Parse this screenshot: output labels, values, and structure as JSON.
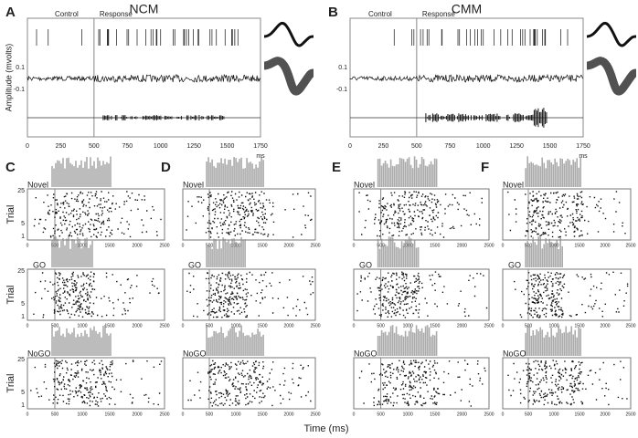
{
  "top_panels": [
    {
      "letter": "A",
      "title": "NCM",
      "control": "Control",
      "response": "Response",
      "ylabel": "Amplitude (mvolts)",
      "yticks": [
        "0.1",
        "-0.1"
      ],
      "xticks": [
        "0",
        "250",
        "500",
        "750",
        "1000",
        "1250",
        "1500",
        "1750"
      ],
      "xunit": "ms"
    },
    {
      "letter": "B",
      "title": "CMM",
      "control": "Control",
      "response": "Response",
      "yticks": [
        "0.1",
        "-0.1"
      ],
      "xticks": [
        "0",
        "250",
        "500",
        "750",
        "1000",
        "1250",
        "1500",
        "1750"
      ],
      "xunit": "ms"
    }
  ],
  "raster_columns": [
    {
      "letter": "C",
      "ylabel": "Trial",
      "yticks": [
        "25",
        "5",
        "1"
      ],
      "rows": [
        "Novel",
        "GO",
        "NoGO"
      ],
      "xticks": [
        "0",
        "500",
        "1000",
        "1500",
        "2000",
        "2500"
      ]
    },
    {
      "letter": "D",
      "rows": [
        "Novel",
        "GO",
        "NoGO"
      ],
      "xticks": [
        "0",
        "500",
        "1000",
        "1500",
        "2000",
        "2500"
      ]
    },
    {
      "letter": "E",
      "rows": [
        "Novel",
        "GO",
        "NoGO"
      ],
      "xticks": [
        "0",
        "500",
        "1000",
        "1500",
        "2000",
        "2500"
      ]
    },
    {
      "letter": "F",
      "rows": [
        "Novel",
        "GO",
        "NoGO"
      ],
      "xticks": [
        "0",
        "500",
        "1000",
        "1500",
        "2000",
        "2500"
      ]
    }
  ],
  "xlabel": "Time (ms)"
}
